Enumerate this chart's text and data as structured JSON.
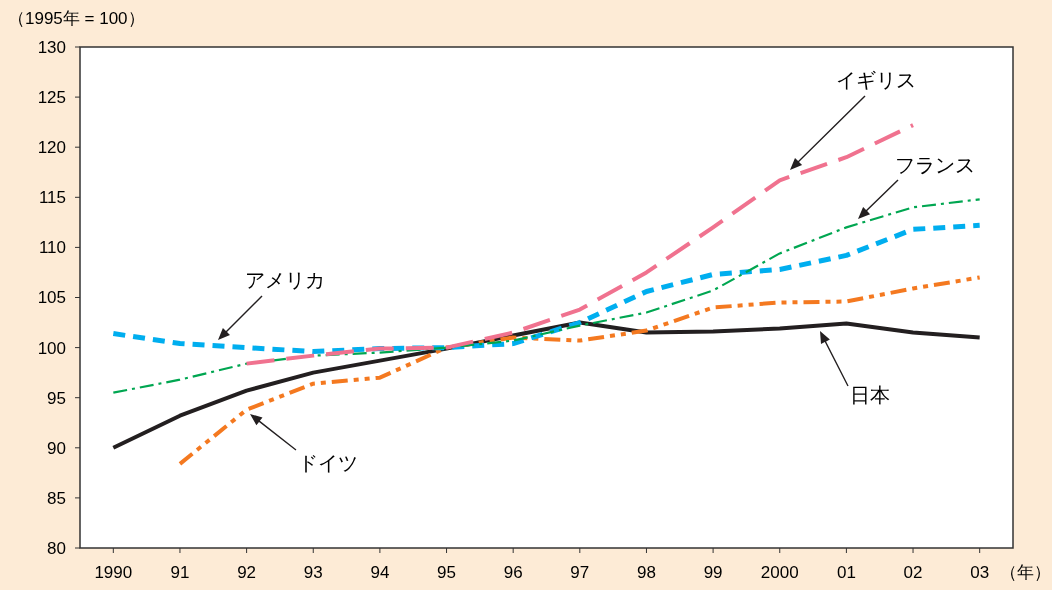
{
  "chart_data": {
    "type": "line",
    "xlabel": "（年）",
    "ylabel": "（1995年 = 100）",
    "x": [
      1990,
      1991,
      1992,
      1993,
      1994,
      1995,
      1996,
      1997,
      1998,
      1999,
      2000,
      2001,
      2002,
      2003
    ],
    "xlim": [
      1989.5,
      2003.5
    ],
    "xticks": [
      {
        "value": 1990,
        "label": "1990"
      },
      {
        "value": 1991,
        "label": "91"
      },
      {
        "value": 1992,
        "label": "92"
      },
      {
        "value": 1993,
        "label": "93"
      },
      {
        "value": 1994,
        "label": "94"
      },
      {
        "value": 1995,
        "label": "95"
      },
      {
        "value": 1996,
        "label": "96"
      },
      {
        "value": 1997,
        "label": "97"
      },
      {
        "value": 1998,
        "label": "98"
      },
      {
        "value": 1999,
        "label": "99"
      },
      {
        "value": 2000,
        "label": "2000"
      },
      {
        "value": 2001,
        "label": "01"
      },
      {
        "value": 2002,
        "label": "02"
      },
      {
        "value": 2003,
        "label": "03"
      }
    ],
    "ylim": [
      80,
      130
    ],
    "yticks": [
      80,
      85,
      90,
      95,
      100,
      105,
      110,
      115,
      120,
      125,
      130
    ],
    "grid": false,
    "marker": "none",
    "series": [
      {
        "name": "日本",
        "color": "#231f20",
        "line_style": "solid",
        "values": [
          90.0,
          93.2,
          95.7,
          97.5,
          98.7,
          99.9,
          101.2,
          102.5,
          101.5,
          101.6,
          101.9,
          102.4,
          101.5,
          101.0
        ]
      },
      {
        "name": "ドイツ",
        "color": "#f47920",
        "line_style": "dashed",
        "values": [
          null,
          88.4,
          93.8,
          96.4,
          97.0,
          100.0,
          101.0,
          100.7,
          101.7,
          104.0,
          104.5,
          104.6,
          105.9,
          107.0
        ]
      },
      {
        "name": "アメリカ",
        "color": "#00aeef",
        "line_style": "dotted",
        "values": [
          101.4,
          100.4,
          100.0,
          99.6,
          99.9,
          100.0,
          100.4,
          102.5,
          105.6,
          107.3,
          107.8,
          109.2,
          111.8,
          112.2
        ]
      },
      {
        "name": "フランス",
        "color": "#00a651",
        "line_style": "dashed",
        "values": [
          95.5,
          96.8,
          98.4,
          99.2,
          99.5,
          100.0,
          100.7,
          102.2,
          103.5,
          105.7,
          109.4,
          112.0,
          114.0,
          114.8
        ]
      },
      {
        "name": "イギリス",
        "color": "#f0728f",
        "line_style": "dashed",
        "values": [
          null,
          null,
          98.4,
          99.2,
          99.9,
          100.0,
          101.5,
          103.8,
          107.5,
          112.0,
          116.7,
          119.0,
          122.2,
          null
        ]
      }
    ]
  }
}
